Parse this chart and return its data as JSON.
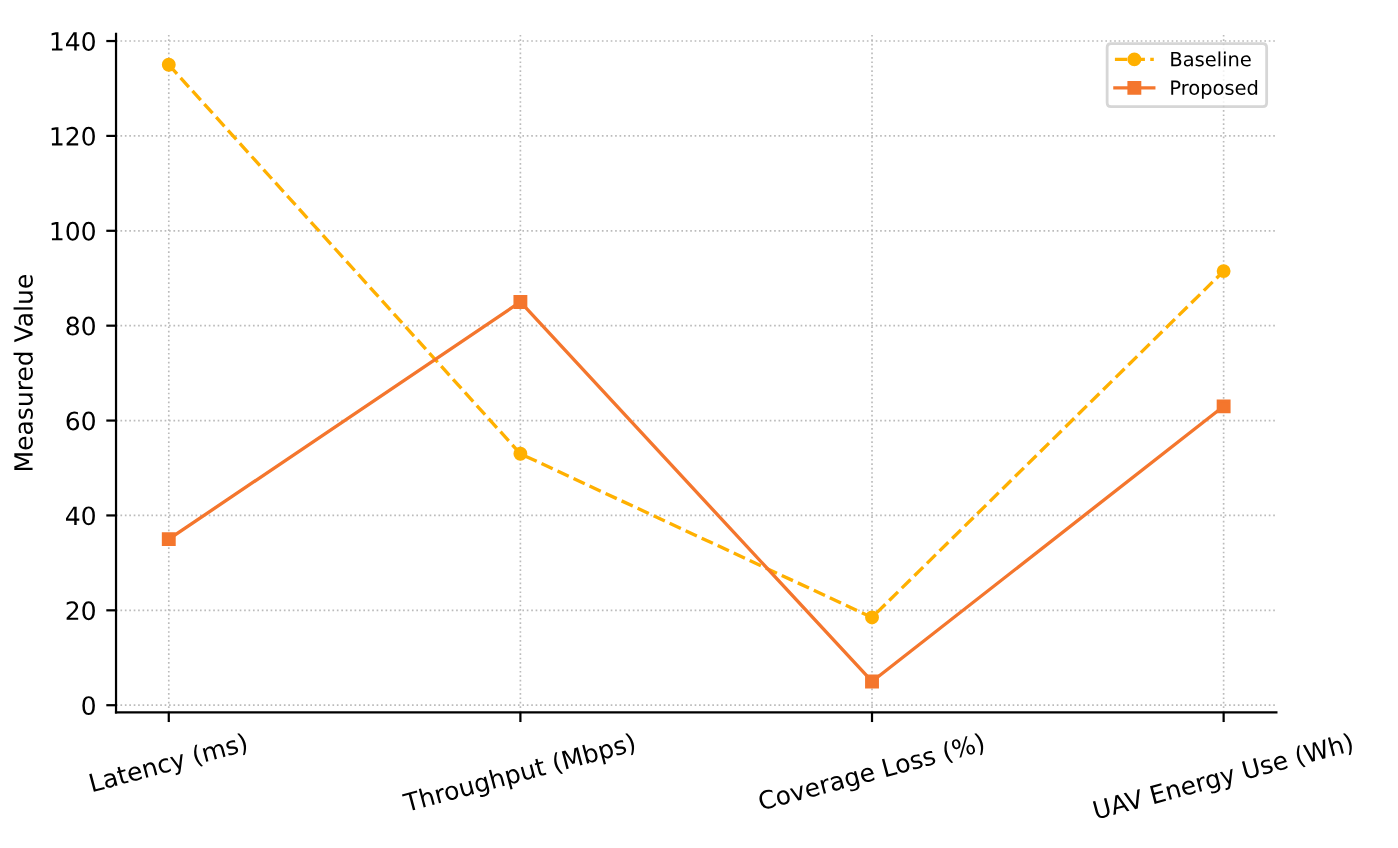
{
  "chart_data": {
    "type": "line",
    "ylabel": "Measured Value",
    "categories": [
      "Latency (ms)",
      "Throughput (Mbps)",
      "Coverage Loss (%)",
      "UAV Energy Use (Wh)"
    ],
    "series": [
      {
        "name": "Baseline",
        "color": "#ffb000",
        "values": [
          135,
          53,
          18.5,
          91.5
        ],
        "marker": "circle",
        "line_style": "dashed"
      },
      {
        "name": "Proposed",
        "color": "#f4762d",
        "values": [
          35,
          85,
          5,
          63
        ],
        "marker": "square",
        "line_style": "solid"
      }
    ],
    "ylim": [
      -1.5,
      141.5
    ],
    "yticks": [
      0,
      20,
      40,
      60,
      80,
      100,
      120,
      140
    ],
    "grid": true,
    "legend": "top right"
  }
}
